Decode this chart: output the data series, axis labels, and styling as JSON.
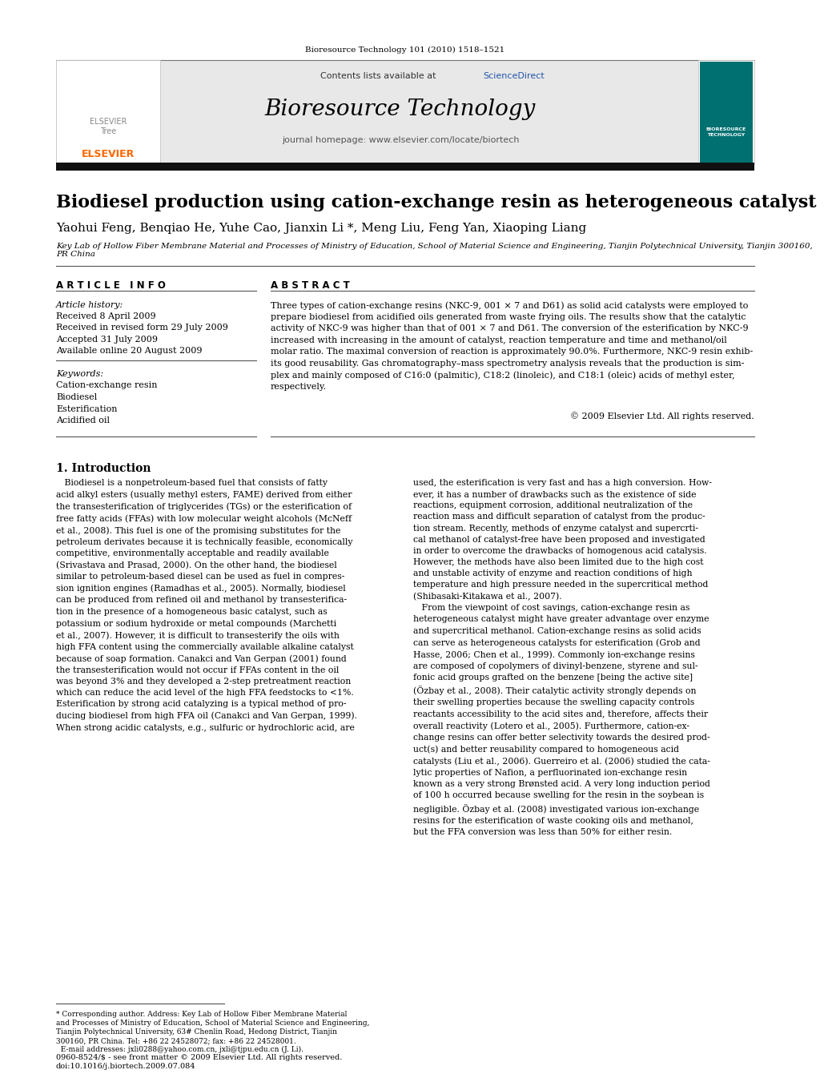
{
  "page_background": "#ffffff",
  "top_citation": "Bioresource Technology 101 (2010) 1518–1521",
  "header_bg": "#e8e8e8",
  "header_sciencedirect_color": "#2255aa",
  "journal_name": "Bioresource Technology",
  "journal_homepage": "journal homepage: www.elsevier.com/locate/biortech",
  "black_bar_color": "#111111",
  "article_title": "Biodiesel production using cation-exchange resin as heterogeneous catalyst",
  "authors": "Yaohui Feng, Benqiao He, Yuhe Cao, Jianxin Li *, Meng Liu, Feng Yan, Xiaoping Liang",
  "affiliation": "Key Lab of Hollow Fiber Membrane Material and Processes of Ministry of Education, School of Material Science and Engineering, Tianjin Polytechnical University, Tianjin 300160,\nPR China",
  "article_info_title": "A R T I C L E   I N F O",
  "article_history_label": "Article history:",
  "article_history": "Received 8 April 2009\nReceived in revised form 29 July 2009\nAccepted 31 July 2009\nAvailable online 20 August 2009",
  "keywords_label": "Keywords:",
  "keywords": "Cation-exchange resin\nBiodiesel\nEsterification\nAcidified oil",
  "abstract_title": "A B S T R A C T",
  "abstract_text": "Three types of cation-exchange resins (NKC-9, 001 × 7 and D61) as solid acid catalysts were employed to\nprepare biodiesel from acidified oils generated from waste frying oils. The results show that the catalytic\nactivity of NKC-9 was higher than that of 001 × 7 and D61. The conversion of the esterification by NKC-9\nincreased with increasing in the amount of catalyst, reaction temperature and time and methanol/oil\nmolar ratio. The maximal conversion of reaction is approximately 90.0%. Furthermore, NKC-9 resin exhib-\nits good reusability. Gas chromatography–mass spectrometry analysis reveals that the production is sim-\nplex and mainly composed of C16:0 (palmitic), C18:2 (linoleic), and C18:1 (oleic) acids of methyl ester,\nrespectively.",
  "copyright": "© 2009 Elsevier Ltd. All rights reserved.",
  "intro_title": "1. Introduction",
  "intro_left": "   Biodiesel is a nonpetroleum-based fuel that consists of fatty\nacid alkyl esters (usually methyl esters, FAME) derived from either\nthe transesterification of triglycerides (TGs) or the esterification of\nfree fatty acids (FFAs) with low molecular weight alcohols (McNeff\net al., 2008). This fuel is one of the promising substitutes for the\npetroleum derivates because it is technically feasible, economically\ncompetitive, environmentally acceptable and readily available\n(Srivastava and Prasad, 2000). On the other hand, the biodiesel\nsimilar to petroleum-based diesel can be used as fuel in compres-\nsion ignition engines (Ramadhas et al., 2005). Normally, biodiesel\ncan be produced from refined oil and methanol by transesterifica-\ntion in the presence of a homogeneous basic catalyst, such as\npotassium or sodium hydroxide or metal compounds (Marchetti\net al., 2007). However, it is difficult to transesterify the oils with\nhigh FFA content using the commercially available alkaline catalyst\nbecause of soap formation. Canakci and Van Gerpan (2001) found\nthe transesterification would not occur if FFAs content in the oil\nwas beyond 3% and they developed a 2-step pretreatment reaction\nwhich can reduce the acid level of the high FFA feedstocks to <1%.\nEsterification by strong acid catalyzing is a typical method of pro-\nducing biodiesel from high FFA oil (Canakci and Van Gerpan, 1999).\nWhen strong acidic catalysts, e.g., sulfuric or hydrochloric acid, are",
  "intro_right": "used, the esterification is very fast and has a high conversion. How-\never, it has a number of drawbacks such as the existence of side\nreactions, equipment corrosion, additional neutralization of the\nreaction mass and difficult separation of catalyst from the produc-\ntion stream. Recently, methods of enzyme catalyst and supercrti-\ncal methanol of catalyst-free have been proposed and investigated\nin order to overcome the drawbacks of homogenous acid catalysis.\nHowever, the methods have also been limited due to the high cost\nand unstable activity of enzyme and reaction conditions of high\ntemperature and high pressure needed in the supercritical method\n(Shibasaki-Kitakawa et al., 2007).\n   From the viewpoint of cost savings, cation-exchange resin as\nheterogeneous catalyst might have greater advantage over enzyme\nand supercritical methanol. Cation-exchange resins as solid acids\ncan serve as heterogeneous catalysts for esterification (Grob and\nHasse, 2006; Chen et al., 1999). Commonly ion-exchange resins\nare composed of copolymers of divinyl-benzene, styrene and sul-\nfonic acid groups grafted on the benzene [being the active site]\n(Özbay et al., 2008). Their catalytic activity strongly depends on\ntheir swelling properties because the swelling capacity controls\nreactants accessibility to the acid sites and, therefore, affects their\noverall reactivity (Lotero et al., 2005). Furthermore, cation-ex-\nchange resins can offer better selectivity towards the desired prod-\nuct(s) and better reusability compared to homogeneous acid\ncatalysts (Liu et al., 2006). Guerreiro et al. (2006) studied the cata-\nlytic properties of Nafion, a perfluorinated ion-exchange resin\nknown as a very strong Brønsted acid. A very long induction period\nof 100 h occurred because swelling for the resin in the soybean is\nnegligible. Özbay et al. (2008) investigated various ion-exchange\nresins for the esterification of waste cooking oils and methanol,\nbut the FFA conversion was less than 50% for either resin.",
  "footnote_line1": "* Corresponding author. Address: Key Lab of Hollow Fiber Membrane Material",
  "footnote_line2": "and Processes of Ministry of Education, School of Material Science and Engineering,",
  "footnote_line3": "Tianjin Polytechnical University, 63# Chenlin Road, Hedong District, Tianjin",
  "footnote_line4": "300160, PR China. Tel: +86 22 24528072; fax: +86 22 24528001.",
  "footnote_line5": "  E-mail addresses: jxli0288@yahoo.com.cn, jxli@tjpu.edu.cn (J. Li).",
  "bottom_line1": "0960-8524/$ - see front matter © 2009 Elsevier Ltd. All rights reserved.",
  "bottom_line2": "doi:10.1016/j.biortech.2009.07.084"
}
